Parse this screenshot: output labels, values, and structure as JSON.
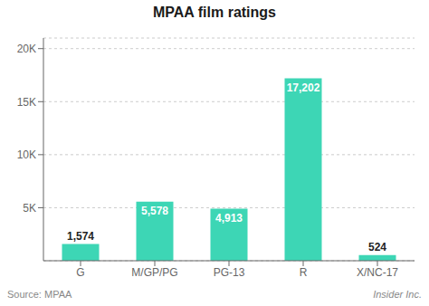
{
  "chart_data": {
    "type": "bar",
    "title": "MPAA film ratings",
    "categories": [
      "G",
      "M/GP/PG",
      "PG-13",
      "R",
      "X/NC-17"
    ],
    "values": [
      1574,
      5578,
      4913,
      17202,
      524
    ],
    "value_labels": [
      "1,574",
      "5,578",
      "4,913",
      "17,202",
      "524"
    ],
    "data_labels": true,
    "color": "#3dd6b5",
    "ylim": [
      0,
      21000
    ],
    "yticks": [
      {
        "value": 5000,
        "label": "5K"
      },
      {
        "value": 10000,
        "label": "10K"
      },
      {
        "value": 15000,
        "label": "15K"
      },
      {
        "value": 20000,
        "label": "20K"
      }
    ],
    "grid": true,
    "annotations": [
      "Source: MPAA",
      "Insider Inc."
    ]
  }
}
